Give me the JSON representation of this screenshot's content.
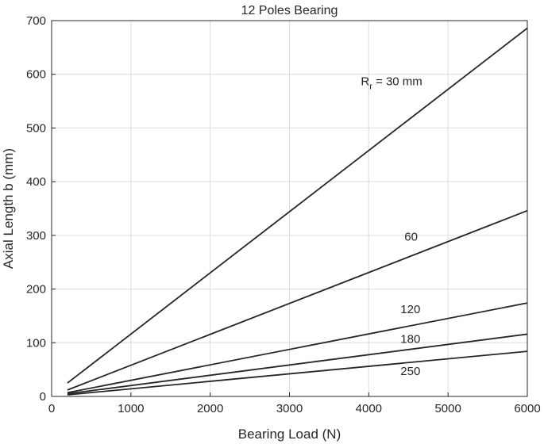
{
  "chart_data": {
    "type": "line",
    "title": "12 Poles Bearing",
    "xlabel": "Bearing Load (N)",
    "ylabel": "Axial Length b (mm)",
    "xlim": [
      0,
      6000
    ],
    "ylim": [
      0,
      700
    ],
    "xticks": [
      0,
      1000,
      2000,
      3000,
      4000,
      5000,
      6000
    ],
    "yticks": [
      0,
      100,
      200,
      300,
      400,
      500,
      600,
      700
    ],
    "x_tick_labels": [
      "0",
      "1000",
      "2000",
      "3000",
      "4000",
      "5000",
      "6000"
    ],
    "y_tick_labels": [
      "0",
      "100",
      "200",
      "300",
      "400",
      "500",
      "600",
      "700"
    ],
    "grid": true,
    "line_color": "#262626",
    "series": [
      {
        "label_main": "R",
        "label_sub": "r",
        "label_rest": " = 30 mm",
        "label_x": 3900,
        "label_y": 580,
        "x": [
          200,
          6000
        ],
        "y": [
          25,
          686
        ]
      },
      {
        "label_main": "60",
        "label_x": 4450,
        "label_y": 290,
        "x": [
          200,
          6000
        ],
        "y": [
          12,
          346
        ]
      },
      {
        "label_main": "120",
        "label_x": 4400,
        "label_y": 155,
        "x": [
          200,
          6000
        ],
        "y": [
          7,
          174
        ]
      },
      {
        "label_main": "180",
        "label_x": 4400,
        "label_y": 100,
        "x": [
          200,
          6000
        ],
        "y": [
          5,
          116
        ]
      },
      {
        "label_main": "250",
        "label_x": 4400,
        "label_y": 40,
        "x": [
          200,
          6000
        ],
        "y": [
          3,
          84
        ]
      }
    ]
  }
}
